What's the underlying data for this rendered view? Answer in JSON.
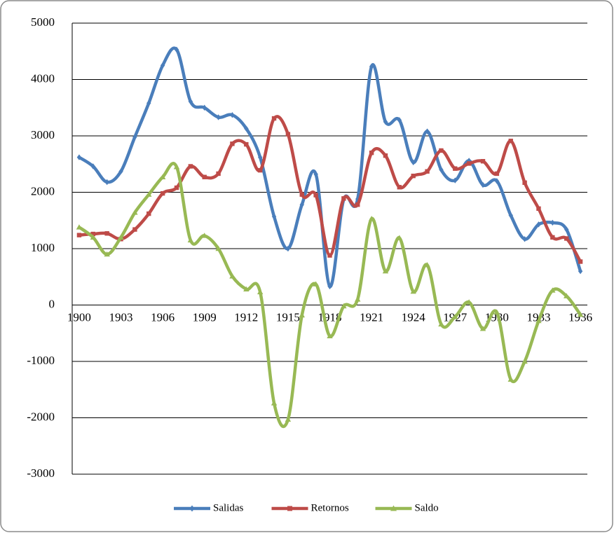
{
  "chart_data": {
    "type": "line",
    "categories": [
      "1900",
      null,
      null,
      "1903",
      null,
      null,
      "1906",
      null,
      null,
      "1909",
      null,
      null,
      "1912",
      null,
      null,
      "1915",
      null,
      null,
      "1918",
      null,
      null,
      "1921",
      null,
      null,
      "1924",
      null,
      null,
      "1927",
      null,
      null,
      "1930",
      null,
      null,
      "1933",
      null,
      null,
      "1936"
    ],
    "series": [
      {
        "name": "Salidas",
        "color": "#4a7ebb",
        "marker": "diamond",
        "values": [
          2620,
          2460,
          2180,
          2370,
          2980,
          3580,
          4250,
          4530,
          3610,
          3500,
          3330,
          3370,
          3130,
          2620,
          1570,
          1000,
          1780,
          2320,
          330,
          1870,
          1880,
          4230,
          3250,
          3280,
          2530,
          3080,
          2400,
          2210,
          2560,
          2130,
          2200,
          1590,
          1170,
          1430,
          1460,
          1340,
          600
        ]
      },
      {
        "name": "Retornos",
        "color": "#be4b48",
        "marker": "square",
        "values": [
          1240,
          1260,
          1270,
          1170,
          1340,
          1620,
          1980,
          2080,
          2460,
          2270,
          2330,
          2860,
          2850,
          2390,
          3310,
          3030,
          1960,
          1950,
          880,
          1890,
          1780,
          2700,
          2650,
          2090,
          2290,
          2370,
          2740,
          2420,
          2510,
          2550,
          2330,
          2910,
          2170,
          1710,
          1200,
          1180,
          770
        ]
      },
      {
        "name": "Saldo",
        "color": "#98b954",
        "marker": "triangle",
        "values": [
          1380,
          1200,
          900,
          1200,
          1640,
          1960,
          2270,
          2450,
          1150,
          1230,
          1000,
          510,
          280,
          230,
          -1740,
          -2030,
          -180,
          370,
          -550,
          -20,
          100,
          1530,
          600,
          1190,
          240,
          710,
          -340,
          -210,
          50,
          -420,
          -130,
          -1320,
          -1000,
          -280,
          260,
          160,
          -170
        ]
      }
    ],
    "ylim": [
      -3000,
      5000
    ],
    "yticks": [
      -3000,
      -2000,
      -1000,
      0,
      1000,
      2000,
      3000,
      4000,
      5000
    ],
    "grid": true,
    "legend": "bottom"
  }
}
